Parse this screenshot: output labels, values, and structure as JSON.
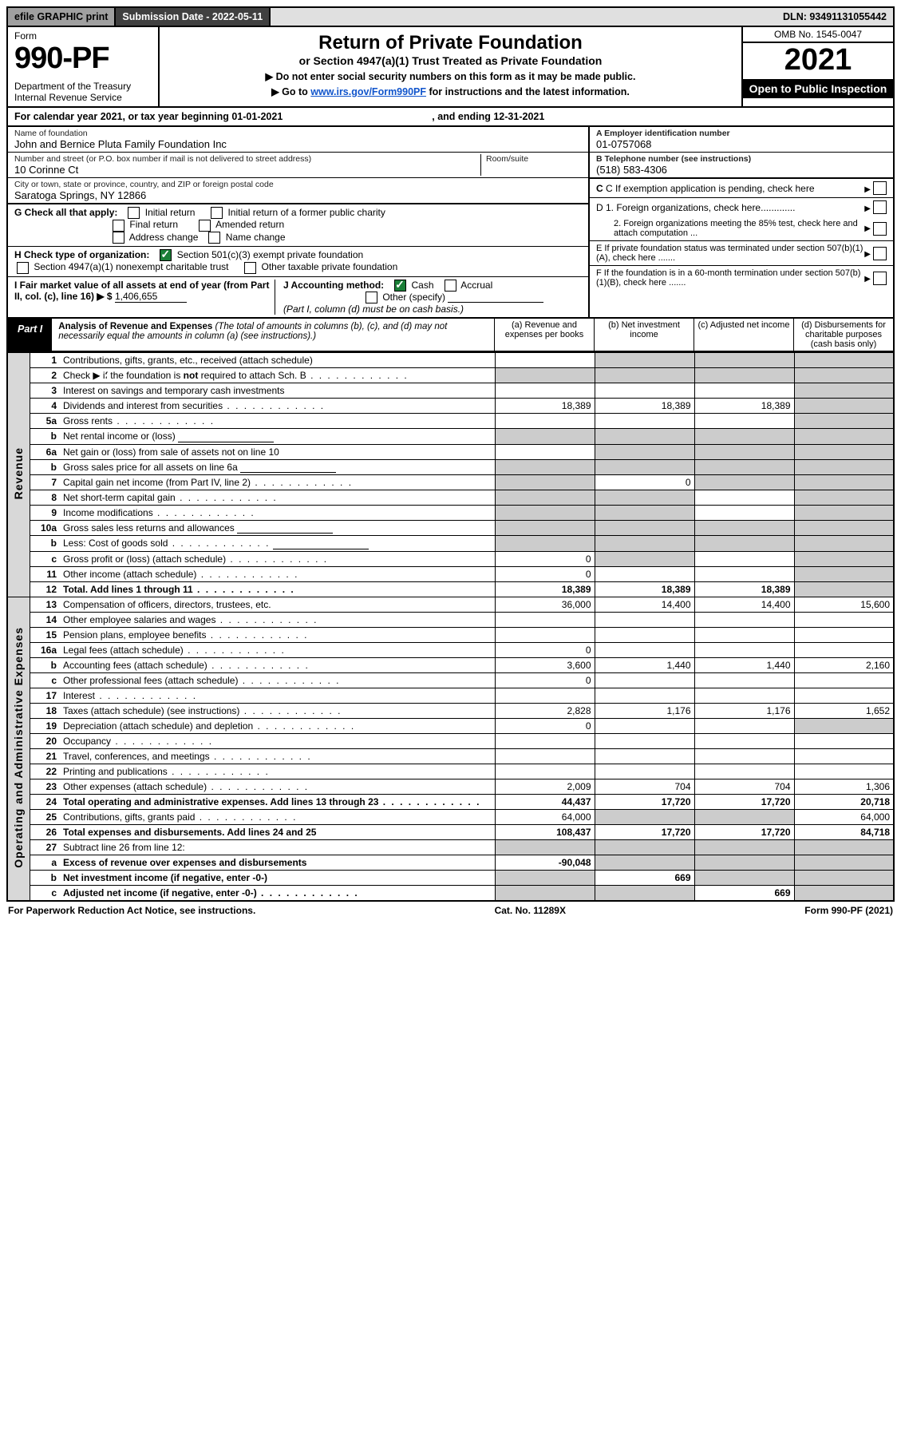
{
  "colors": {
    "header_grey": "#e0e0e0",
    "header_dark": "#404040",
    "black": "#000000",
    "check_green": "#1a7f37",
    "side_grey": "#d8d8d8",
    "cell_grey": "#cccccc",
    "link": "#1155cc"
  },
  "topbar": {
    "efile": "efile GRAPHIC print",
    "subdate_label": "Submission Date - 2022-05-11",
    "dln": "DLN: 93491131055442"
  },
  "header": {
    "form_label": "Form",
    "form_num": "990-PF",
    "dept": "Department of the Treasury\nInternal Revenue Service",
    "title": "Return of Private Foundation",
    "subtitle": "or Section 4947(a)(1) Trust Treated as Private Foundation",
    "note1": "▶ Do not enter social security numbers on this form as it may be made public.",
    "note2_pre": "▶ Go to ",
    "note2_link": "www.irs.gov/Form990PF",
    "note2_post": " for instructions and the latest information.",
    "omb": "OMB No. 1545-0047",
    "year": "2021",
    "open": "Open to Public Inspection"
  },
  "calyear": {
    "text_pre": "For calendar year 2021, or tax year beginning ",
    "begin": "01-01-2021",
    "mid": ", and ending ",
    "end": "12-31-2021"
  },
  "info": {
    "name_lbl": "Name of foundation",
    "name_val": "John and Bernice Pluta Family Foundation Inc",
    "addr_lbl": "Number and street (or P.O. box number if mail is not delivered to street address)",
    "addr_val": "10 Corinne Ct",
    "room_lbl": "Room/suite",
    "city_lbl": "City or town, state or province, country, and ZIP or foreign postal code",
    "city_val": "Saratoga Springs, NY  12866",
    "ein_lbl": "A Employer identification number",
    "ein_val": "01-0757068",
    "tel_lbl": "B Telephone number (see instructions)",
    "tel_val": "(518) 583-4306",
    "c_lbl": "C If exemption application is pending, check here",
    "d1_lbl": "D 1. Foreign organizations, check here.............",
    "d2_lbl": "2. Foreign organizations meeting the 85% test, check here and attach computation ...",
    "e_lbl": "E  If private foundation status was terminated under section 507(b)(1)(A), check here .......",
    "f_lbl": "F  If the foundation is in a 60-month termination under section 507(b)(1)(B), check here .......",
    "g_lbl": "G Check all that apply:",
    "g_opts": [
      "Initial return",
      "Initial return of a former public charity",
      "Final return",
      "Amended return",
      "Address change",
      "Name change"
    ],
    "h_lbl": "H Check type of organization:",
    "h_opts": [
      "Section 501(c)(3) exempt private foundation",
      "Section 4947(a)(1) nonexempt charitable trust",
      "Other taxable private foundation"
    ],
    "i_lbl": "I Fair market value of all assets at end of year (from Part II, col. (c), line 16) ▶ $",
    "i_val": "1,406,655",
    "j_lbl": "J Accounting method:",
    "j_cash": "Cash",
    "j_accrual": "Accrual",
    "j_other": "Other (specify)",
    "j_note": "(Part I, column (d) must be on cash basis.)"
  },
  "part1": {
    "tag": "Part I",
    "title": "Analysis of Revenue and Expenses",
    "note": "(The total of amounts in columns (b), (c), and (d) may not necessarily equal the amounts in column (a) (see instructions).)",
    "col_a": "(a)  Revenue and expenses per books",
    "col_b": "(b)  Net investment income",
    "col_c": "(c)  Adjusted net income",
    "col_d": "(d)  Disbursements for charitable purposes (cash basis only)"
  },
  "side_labels": {
    "revenue": "Revenue",
    "ops": "Operating and Administrative Expenses"
  },
  "rows": [
    {
      "n": "1",
      "d": "Contributions, gifts, grants, etc., received (attach schedule)",
      "a": "",
      "b": null,
      "c": null,
      "dcol": null,
      "grey": [
        false,
        true,
        true,
        true
      ]
    },
    {
      "n": "2",
      "d": "Check ▶ ✔ if the foundation is not required to attach Sch. B",
      "a": null,
      "b": null,
      "c": null,
      "dcol": null,
      "grey": [
        true,
        true,
        true,
        true
      ],
      "nodata": true,
      "dots": true
    },
    {
      "n": "3",
      "d": "Interest on savings and temporary cash investments",
      "a": "",
      "b": "",
      "c": "",
      "dcol": null,
      "grey": [
        false,
        false,
        false,
        true
      ]
    },
    {
      "n": "4",
      "d": "Dividends and interest from securities",
      "a": "18,389",
      "b": "18,389",
      "c": "18,389",
      "dcol": null,
      "grey": [
        false,
        false,
        false,
        true
      ],
      "dots": true
    },
    {
      "n": "5a",
      "d": "Gross rents",
      "a": "",
      "b": "",
      "c": "",
      "dcol": null,
      "grey": [
        false,
        false,
        false,
        true
      ],
      "dots": true
    },
    {
      "n": "b",
      "d": "Net rental income or (loss)",
      "a": null,
      "b": null,
      "c": null,
      "dcol": null,
      "grey": [
        true,
        true,
        true,
        true
      ],
      "inner_field": true
    },
    {
      "n": "6a",
      "d": "Net gain or (loss) from sale of assets not on line 10",
      "a": "",
      "b": null,
      "c": null,
      "dcol": null,
      "grey": [
        false,
        true,
        true,
        true
      ]
    },
    {
      "n": "b",
      "d": "Gross sales price for all assets on line 6a",
      "a": null,
      "b": null,
      "c": null,
      "dcol": null,
      "grey": [
        true,
        true,
        true,
        true
      ],
      "inner_field": true
    },
    {
      "n": "7",
      "d": "Capital gain net income (from Part IV, line 2)",
      "a": null,
      "b": "0",
      "c": null,
      "dcol": null,
      "grey": [
        true,
        false,
        true,
        true
      ],
      "dots": true
    },
    {
      "n": "8",
      "d": "Net short-term capital gain",
      "a": null,
      "b": null,
      "c": "",
      "dcol": null,
      "grey": [
        true,
        true,
        false,
        true
      ],
      "dots": true
    },
    {
      "n": "9",
      "d": "Income modifications",
      "a": null,
      "b": null,
      "c": "",
      "dcol": null,
      "grey": [
        true,
        true,
        false,
        true
      ],
      "dots": true
    },
    {
      "n": "10a",
      "d": "Gross sales less returns and allowances",
      "a": null,
      "b": null,
      "c": null,
      "dcol": null,
      "grey": [
        true,
        true,
        true,
        true
      ],
      "inner_field": true
    },
    {
      "n": "b",
      "d": "Less: Cost of goods sold",
      "a": null,
      "b": null,
      "c": null,
      "dcol": null,
      "grey": [
        true,
        true,
        true,
        true
      ],
      "inner_field": true,
      "dots": true
    },
    {
      "n": "c",
      "d": "Gross profit or (loss) (attach schedule)",
      "a": "0",
      "b": null,
      "c": "",
      "dcol": null,
      "grey": [
        false,
        true,
        false,
        true
      ],
      "dots": true
    },
    {
      "n": "11",
      "d": "Other income (attach schedule)",
      "a": "0",
      "b": "",
      "c": "",
      "dcol": null,
      "grey": [
        false,
        false,
        false,
        true
      ],
      "dots": true
    },
    {
      "n": "12",
      "d": "Total. Add lines 1 through 11",
      "a": "18,389",
      "b": "18,389",
      "c": "18,389",
      "dcol": null,
      "grey": [
        false,
        false,
        false,
        true
      ],
      "bold": true,
      "dots": true
    },
    {
      "n": "13",
      "d": "Compensation of officers, directors, trustees, etc.",
      "a": "36,000",
      "b": "14,400",
      "c": "14,400",
      "dcol": "15,600"
    },
    {
      "n": "14",
      "d": "Other employee salaries and wages",
      "a": "",
      "b": "",
      "c": "",
      "dcol": "",
      "dots": true
    },
    {
      "n": "15",
      "d": "Pension plans, employee benefits",
      "a": "",
      "b": "",
      "c": "",
      "dcol": "",
      "dots": true
    },
    {
      "n": "16a",
      "d": "Legal fees (attach schedule)",
      "a": "0",
      "b": "",
      "c": "",
      "dcol": "",
      "dots": true
    },
    {
      "n": "b",
      "d": "Accounting fees (attach schedule)",
      "a": "3,600",
      "b": "1,440",
      "c": "1,440",
      "dcol": "2,160",
      "dots": true
    },
    {
      "n": "c",
      "d": "Other professional fees (attach schedule)",
      "a": "0",
      "b": "",
      "c": "",
      "dcol": "",
      "dots": true
    },
    {
      "n": "17",
      "d": "Interest",
      "a": "",
      "b": "",
      "c": "",
      "dcol": "",
      "dots": true
    },
    {
      "n": "18",
      "d": "Taxes (attach schedule) (see instructions)",
      "a": "2,828",
      "b": "1,176",
      "c": "1,176",
      "dcol": "1,652",
      "dots": true
    },
    {
      "n": "19",
      "d": "Depreciation (attach schedule) and depletion",
      "a": "0",
      "b": "",
      "c": "",
      "dcol": null,
      "grey": [
        false,
        false,
        false,
        true
      ],
      "dots": true
    },
    {
      "n": "20",
      "d": "Occupancy",
      "a": "",
      "b": "",
      "c": "",
      "dcol": "",
      "dots": true
    },
    {
      "n": "21",
      "d": "Travel, conferences, and meetings",
      "a": "",
      "b": "",
      "c": "",
      "dcol": "",
      "dots": true
    },
    {
      "n": "22",
      "d": "Printing and publications",
      "a": "",
      "b": "",
      "c": "",
      "dcol": "",
      "dots": true
    },
    {
      "n": "23",
      "d": "Other expenses (attach schedule)",
      "a": "2,009",
      "b": "704",
      "c": "704",
      "dcol": "1,306",
      "dots": true
    },
    {
      "n": "24",
      "d": "Total operating and administrative expenses. Add lines 13 through 23",
      "a": "44,437",
      "b": "17,720",
      "c": "17,720",
      "dcol": "20,718",
      "bold": true,
      "dots": true
    },
    {
      "n": "25",
      "d": "Contributions, gifts, grants paid",
      "a": "64,000",
      "b": null,
      "c": null,
      "dcol": "64,000",
      "grey": [
        false,
        true,
        true,
        false
      ],
      "dots": true
    },
    {
      "n": "26",
      "d": "Total expenses and disbursements. Add lines 24 and 25",
      "a": "108,437",
      "b": "17,720",
      "c": "17,720",
      "dcol": "84,718",
      "bold": true
    },
    {
      "n": "27",
      "d": "Subtract line 26 from line 12:",
      "a": null,
      "b": null,
      "c": null,
      "dcol": null,
      "grey": [
        true,
        true,
        true,
        true
      ]
    },
    {
      "n": "a",
      "d": "Excess of revenue over expenses and disbursements",
      "a": "-90,048",
      "b": null,
      "c": null,
      "dcol": null,
      "grey": [
        false,
        true,
        true,
        true
      ],
      "bold": true
    },
    {
      "n": "b",
      "d": "Net investment income (if negative, enter -0-)",
      "a": null,
      "b": "669",
      "c": null,
      "dcol": null,
      "grey": [
        true,
        false,
        true,
        true
      ],
      "bold": true
    },
    {
      "n": "c",
      "d": "Adjusted net income (if negative, enter -0-)",
      "a": null,
      "b": null,
      "c": "669",
      "dcol": null,
      "grey": [
        true,
        true,
        false,
        true
      ],
      "bold": true,
      "dots": true
    }
  ],
  "row_split": 16,
  "footer": {
    "left": "For Paperwork Reduction Act Notice, see instructions.",
    "mid": "Cat. No. 11289X",
    "right": "Form 990-PF (2021)"
  }
}
